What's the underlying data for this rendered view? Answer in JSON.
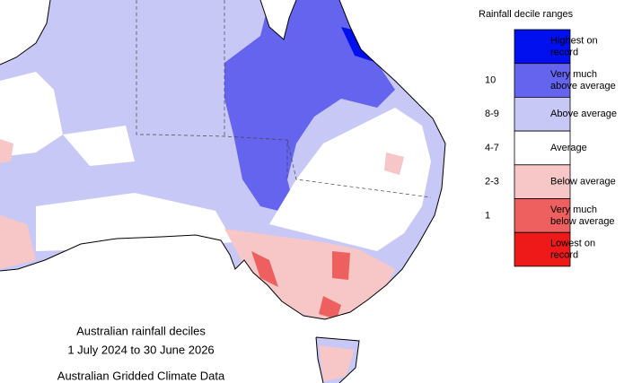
{
  "legend": {
    "title": "Rainfall decile ranges",
    "items": [
      {
        "label": "Highest on record",
        "color": "#0010ee"
      },
      {
        "label": "Very much above average",
        "range": "10",
        "color": "#6464ee"
      },
      {
        "label": "Above average",
        "range": "8-9",
        "color": "#c8c8f6"
      },
      {
        "label": "Average",
        "range": "4-7",
        "color": "#ffffff"
      },
      {
        "label": "Below average",
        "range": "2-3",
        "color": "#f7c6c6"
      },
      {
        "label": "Very much below average",
        "range": "1",
        "color": "#ee6060"
      },
      {
        "label": "Lowest on record",
        "color": "#ee1a1a"
      }
    ]
  },
  "caption": [
    "Australian rainfall deciles",
    "1 July 2024 to 30 June 2026",
    "Australian Gridded Climate Data"
  ]
}
